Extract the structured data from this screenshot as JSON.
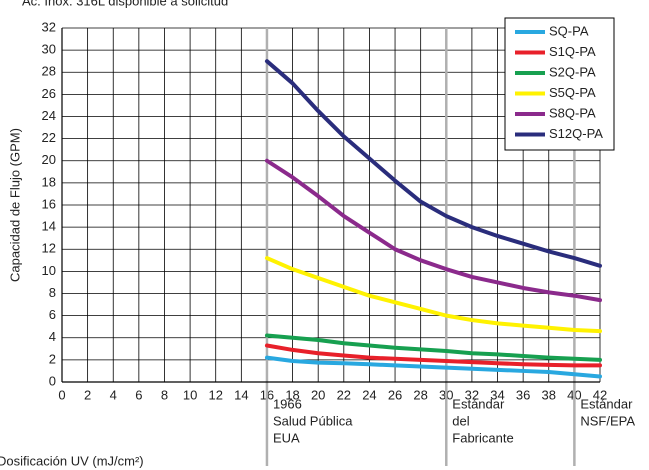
{
  "chart_data": {
    "type": "line",
    "note": "Ac. Inox. 316L disponible a solicitud",
    "ylabel": "Capacidad de Flujo (GPM)",
    "xlabel": "Dosificación UV (mJ/cm²)",
    "x": [
      16,
      18,
      20,
      22,
      24,
      26,
      28,
      30,
      32,
      34,
      36,
      38,
      40,
      42
    ],
    "series": [
      {
        "name": "SQ-PA",
        "color": "#29a8e0",
        "values": [
          2.2,
          1.9,
          1.75,
          1.7,
          1.6,
          1.5,
          1.4,
          1.3,
          1.2,
          1.1,
          1.0,
          0.9,
          0.7,
          0.5
        ]
      },
      {
        "name": "S1Q-PA",
        "color": "#e8202a",
        "values": [
          3.3,
          2.9,
          2.6,
          2.4,
          2.2,
          2.1,
          2.0,
          1.9,
          1.8,
          1.7,
          1.6,
          1.55,
          1.5,
          1.5
        ]
      },
      {
        "name": "S2Q-PA",
        "color": "#17a050",
        "values": [
          4.2,
          4.0,
          3.8,
          3.5,
          3.3,
          3.1,
          2.95,
          2.8,
          2.6,
          2.5,
          2.35,
          2.2,
          2.1,
          2.0
        ]
      },
      {
        "name": "S5Q-PA",
        "color": "#fff200",
        "values": [
          11.2,
          10.2,
          9.4,
          8.6,
          7.8,
          7.2,
          6.6,
          6.0,
          5.6,
          5.3,
          5.1,
          4.9,
          4.7,
          4.6
        ]
      },
      {
        "name": "S8Q-PA",
        "color": "#8b2a8c",
        "values": [
          20,
          18.5,
          16.8,
          15,
          13.5,
          12,
          11,
          10.2,
          9.5,
          9,
          8.5,
          8.1,
          7.8,
          7.4
        ]
      },
      {
        "name": "S12Q-PA",
        "color": "#2a2d7c",
        "values": [
          29,
          27,
          24.5,
          22.2,
          20.2,
          18.2,
          16.3,
          15,
          14,
          13.2,
          12.5,
          11.8,
          11.2,
          10.5
        ]
      }
    ],
    "xlim": [
      0,
      42
    ],
    "ylim": [
      0,
      32
    ],
    "xticks": [
      0,
      2,
      4,
      6,
      8,
      10,
      12,
      14,
      16,
      18,
      20,
      22,
      24,
      26,
      28,
      30,
      32,
      34,
      36,
      38,
      40,
      42
    ],
    "yticks": [
      0,
      2,
      4,
      6,
      8,
      10,
      12,
      14,
      16,
      18,
      20,
      22,
      24,
      26,
      28,
      30,
      32
    ],
    "grid": true,
    "legend": "upper right",
    "annotations": [
      {
        "x": 16,
        "lines": [
          "1966",
          "Salud Pública",
          "EUA"
        ]
      },
      {
        "x": 30,
        "lines": [
          "Estándar",
          "del",
          "Fabricante"
        ]
      },
      {
        "x": 40,
        "lines": [
          "Estándar",
          "NSF/EPA"
        ]
      }
    ]
  }
}
